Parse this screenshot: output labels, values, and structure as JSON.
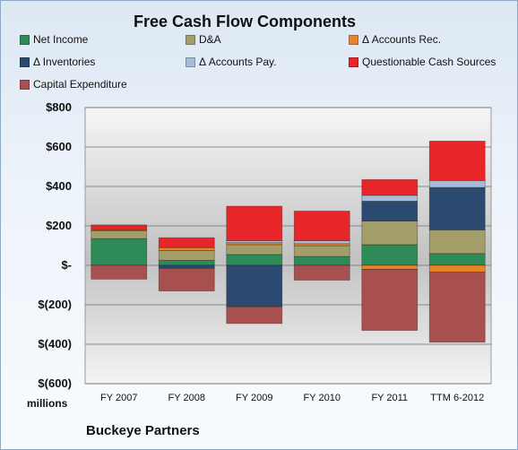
{
  "chart_data": {
    "type": "bar",
    "stacked": true,
    "title": "Free Cash Flow Components",
    "categories": [
      "FY 2007",
      "FY 2008",
      "FY 2009",
      "FY 2010",
      "FY 2011",
      "TTM 6-2012"
    ],
    "ylim": [
      -600,
      800
    ],
    "ytick_values": [
      800,
      600,
      400,
      200,
      0,
      -200,
      -400,
      -600
    ],
    "ytick_labels": [
      "$800",
      "$600",
      "$400",
      "$200",
      "$-",
      "$(200)",
      "$(400)",
      "$(600)"
    ],
    "unit_label": "millions",
    "grid": true,
    "legend_position": "top",
    "series": [
      {
        "name": "Net Income",
        "color": "#2e8b57",
        "values": [
          135,
          25,
          55,
          45,
          105,
          60
        ]
      },
      {
        "name": "D&A",
        "color": "#a39d6a",
        "values": [
          40,
          50,
          50,
          55,
          120,
          120
        ]
      },
      {
        "name": "Δ Accounts Rec.",
        "color": "#e8852a",
        "values": [
          5,
          15,
          10,
          10,
          -20,
          -35
        ]
      },
      {
        "name": "Δ Inventories",
        "color": "#2c4a70",
        "values": [
          0,
          -15,
          -210,
          0,
          100,
          215
        ]
      },
      {
        "name": "Δ Accounts Pay.",
        "color": "#a7bcd8",
        "values": [
          0,
          0,
          10,
          15,
          30,
          35
        ]
      },
      {
        "name": "Questionable Cash Sources",
        "color": "#e8262a",
        "values": [
          25,
          50,
          175,
          150,
          80,
          200
        ]
      },
      {
        "name": "Capital Expenditure",
        "color": "#a8504f",
        "values": [
          -70,
          -115,
          -85,
          -75,
          -310,
          -355
        ]
      }
    ],
    "footer": "Buckeye Partners"
  }
}
